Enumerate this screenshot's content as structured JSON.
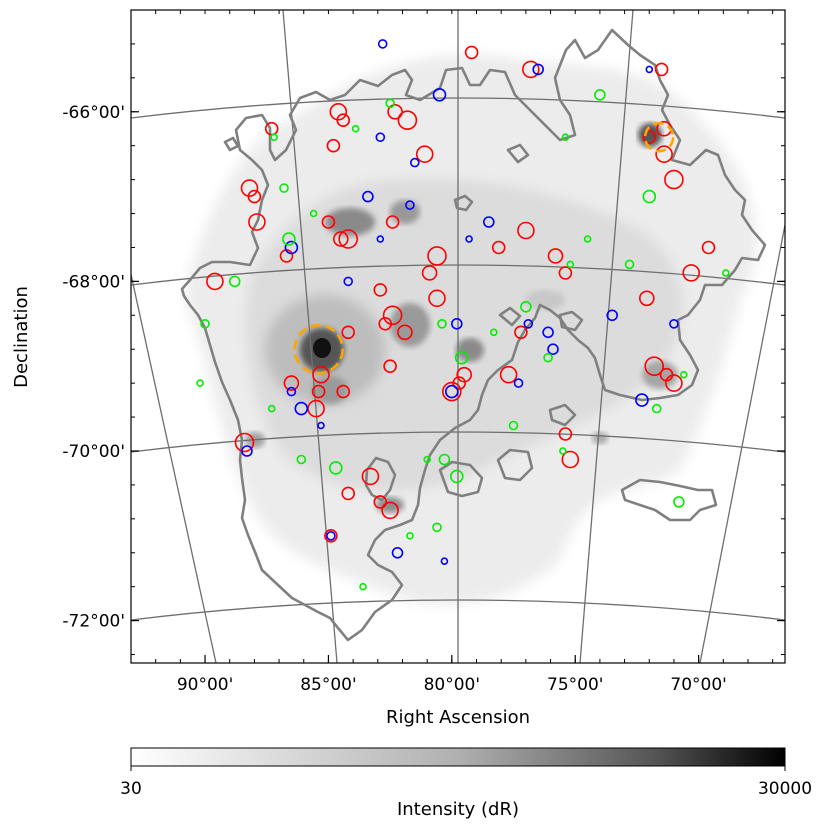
{
  "chart_data": {
    "type": "scatter",
    "projection": "sky (RA/Dec) with curved grid",
    "xlabel": "Right Ascension",
    "ylabel": "Declination",
    "x_ticks": [
      "90°00'",
      "85°00'",
      "80°00'",
      "75°00'",
      "70°00'"
    ],
    "x_tick_values": [
      90,
      85,
      80,
      75,
      70
    ],
    "y_ticks": [
      "-66°00'",
      "-68°00'",
      "-70°00'",
      "-72°00'"
    ],
    "y_tick_values": [
      -66,
      -68,
      -70,
      -72
    ],
    "xlim": [
      93.0,
      66.5
    ],
    "ylim": [
      -72.5,
      -64.8
    ],
    "grid": true,
    "background": "grayscale intensity map with gray contour overlay",
    "colorbar": {
      "label": "Intensity (dR)",
      "min_label": "30",
      "max_label": "30000",
      "min": 30,
      "max": 30000,
      "scale": "log",
      "colormap": "white-to-black"
    },
    "series": [
      {
        "color": "#ff0000",
        "marker": "open circle",
        "points": [
          [
            87.3,
            -66.2
          ],
          [
            84.6,
            -66.0
          ],
          [
            84.4,
            -66.1
          ],
          [
            82.3,
            -66.0
          ],
          [
            81.8,
            -66.1
          ],
          [
            84.8,
            -66.4
          ],
          [
            88.2,
            -66.9
          ],
          [
            88.0,
            -67.0
          ],
          [
            87.9,
            -67.3
          ],
          [
            85.0,
            -67.3
          ],
          [
            84.5,
            -67.5
          ],
          [
            84.2,
            -67.5
          ],
          [
            82.4,
            -67.3
          ],
          [
            81.1,
            -66.5
          ],
          [
            79.2,
            -65.3
          ],
          [
            76.8,
            -65.5
          ],
          [
            71.5,
            -65.5
          ],
          [
            71.4,
            -66.2
          ],
          [
            71.0,
            -66.8
          ],
          [
            69.6,
            -67.6
          ],
          [
            70.3,
            -67.9
          ],
          [
            75.4,
            -67.9
          ],
          [
            77.0,
            -67.4
          ],
          [
            78.1,
            -67.6
          ],
          [
            80.9,
            -67.9
          ],
          [
            80.6,
            -67.7
          ],
          [
            86.7,
            -67.7
          ],
          [
            89.6,
            -68.0
          ],
          [
            82.9,
            -68.1
          ],
          [
            80.6,
            -68.2
          ],
          [
            82.7,
            -68.5
          ],
          [
            81.9,
            -68.6
          ],
          [
            82.4,
            -68.4
          ],
          [
            84.2,
            -68.6
          ],
          [
            85.3,
            -69.1
          ],
          [
            85.4,
            -69.3
          ],
          [
            85.5,
            -69.5
          ],
          [
            84.4,
            -69.3
          ],
          [
            86.5,
            -69.2
          ],
          [
            88.4,
            -69.9
          ],
          [
            84.2,
            -70.5
          ],
          [
            83.3,
            -70.3
          ],
          [
            82.9,
            -70.6
          ],
          [
            82.5,
            -70.7
          ],
          [
            82.5,
            -69.0
          ],
          [
            79.5,
            -69.1
          ],
          [
            80.0,
            -69.3
          ],
          [
            79.7,
            -69.2
          ],
          [
            77.7,
            -69.1
          ],
          [
            75.4,
            -69.8
          ],
          [
            75.2,
            -70.1
          ],
          [
            77.2,
            -68.6
          ],
          [
            72.1,
            -68.2
          ],
          [
            71.8,
            -69.0
          ],
          [
            71.3,
            -69.1
          ],
          [
            71.0,
            -69.2
          ],
          [
            72.0,
            -66.3
          ],
          [
            71.4,
            -66.5
          ],
          [
            84.9,
            -71.0
          ],
          [
            75.8,
            -67.7
          ]
        ]
      },
      {
        "color": "#0000ff",
        "marker": "open circle",
        "points": [
          [
            82.8,
            -65.2
          ],
          [
            76.5,
            -65.5
          ],
          [
            72.0,
            -65.5
          ],
          [
            80.5,
            -65.8
          ],
          [
            82.9,
            -66.3
          ],
          [
            83.4,
            -67.0
          ],
          [
            81.7,
            -67.1
          ],
          [
            78.5,
            -67.3
          ],
          [
            79.3,
            -67.5
          ],
          [
            86.5,
            -67.6
          ],
          [
            84.2,
            -68.0
          ],
          [
            73.5,
            -68.4
          ],
          [
            71.0,
            -68.5
          ],
          [
            79.8,
            -68.5
          ],
          [
            85.3,
            -69.7
          ],
          [
            86.1,
            -69.5
          ],
          [
            86.5,
            -69.3
          ],
          [
            88.3,
            -70.0
          ],
          [
            84.9,
            -71.0
          ],
          [
            82.2,
            -71.2
          ],
          [
            80.3,
            -71.3
          ],
          [
            80.0,
            -69.3
          ],
          [
            77.3,
            -69.2
          ],
          [
            75.9,
            -68.8
          ],
          [
            76.9,
            -68.5
          ],
          [
            76.1,
            -68.6
          ],
          [
            82.9,
            -67.5
          ],
          [
            72.3,
            -69.4
          ],
          [
            81.5,
            -66.6
          ]
        ]
      },
      {
        "color": "#00ee00",
        "marker": "open circle",
        "points": [
          [
            87.2,
            -66.3
          ],
          [
            86.8,
            -66.9
          ],
          [
            86.6,
            -67.5
          ],
          [
            85.6,
            -67.2
          ],
          [
            88.8,
            -68.0
          ],
          [
            90.0,
            -68.5
          ],
          [
            90.2,
            -69.2
          ],
          [
            87.3,
            -69.5
          ],
          [
            86.1,
            -70.1
          ],
          [
            84.7,
            -70.2
          ],
          [
            81.0,
            -70.1
          ],
          [
            80.3,
            -70.1
          ],
          [
            80.6,
            -70.9
          ],
          [
            81.7,
            -71.0
          ],
          [
            83.6,
            -71.6
          ],
          [
            80.4,
            -68.5
          ],
          [
            79.6,
            -68.9
          ],
          [
            78.3,
            -68.6
          ],
          [
            77.0,
            -68.3
          ],
          [
            76.1,
            -68.9
          ],
          [
            75.2,
            -67.8
          ],
          [
            74.5,
            -67.5
          ],
          [
            72.8,
            -67.8
          ],
          [
            72.0,
            -67.0
          ],
          [
            68.9,
            -67.9
          ],
          [
            70.8,
            -70.6
          ],
          [
            71.7,
            -69.5
          ],
          [
            70.6,
            -69.1
          ],
          [
            75.5,
            -70.0
          ],
          [
            77.5,
            -69.7
          ],
          [
            79.8,
            -70.3
          ],
          [
            75.4,
            -66.3
          ],
          [
            74.0,
            -65.8
          ],
          [
            82.5,
            -65.9
          ],
          [
            83.9,
            -66.2
          ]
        ]
      },
      {
        "color": "#ffa500",
        "marker": "dashed open circle",
        "points": [
          [
            85.4,
            -68.8
          ],
          [
            71.6,
            -66.3
          ]
        ]
      }
    ]
  }
}
